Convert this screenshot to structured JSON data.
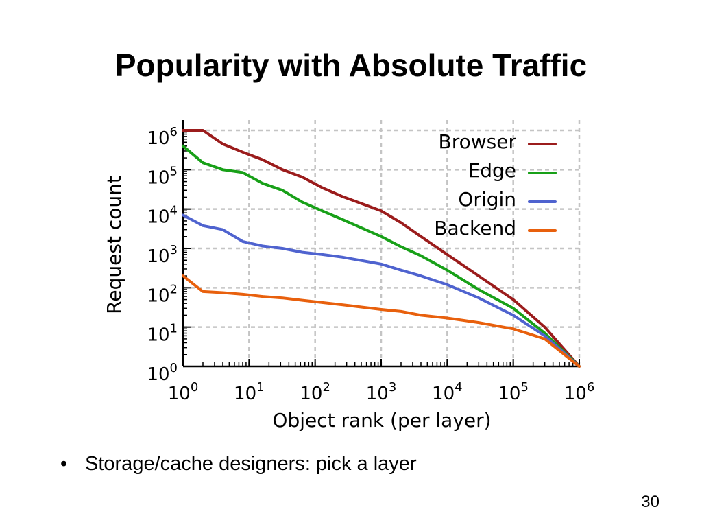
{
  "slide": {
    "title": "Popularity with Absolute Traffic",
    "bullet_marker": "•",
    "bullet": "Storage/cache designers: pick a layer",
    "page_number": "30"
  },
  "chart_data": {
    "type": "line",
    "xlabel": "Object rank (per layer)",
    "ylabel": "Request count",
    "xscale": "log",
    "yscale": "log",
    "xlim": [
      1,
      1000000
    ],
    "ylim": [
      1,
      1000000
    ],
    "x_ticks": [
      1,
      10,
      100,
      1000,
      10000,
      100000,
      1000000
    ],
    "y_ticks": [
      1,
      10,
      100,
      1000,
      10000,
      100000,
      1000000
    ],
    "grid": true,
    "legend": "top-right",
    "series": [
      {
        "name": "Browser",
        "color": "#9b1c1c",
        "x": [
          1,
          2,
          4,
          8,
          16,
          32,
          64,
          128,
          256,
          1000,
          2000,
          4000,
          10000,
          30000,
          100000,
          300000,
          1000000
        ],
        "y": [
          1000000,
          1000000,
          450000,
          280000,
          180000,
          100000,
          65000,
          35000,
          21000,
          9000,
          4500,
          2000,
          700,
          200,
          50,
          10,
          1
        ]
      },
      {
        "name": "Edge",
        "color": "#18a018",
        "x": [
          1,
          2,
          4,
          8,
          16,
          32,
          64,
          128,
          256,
          1000,
          2000,
          4000,
          10000,
          30000,
          100000,
          300000,
          1000000
        ],
        "y": [
          400000,
          150000,
          100000,
          85000,
          45000,
          30000,
          15000,
          9000,
          5500,
          2000,
          1100,
          650,
          280,
          90,
          30,
          7,
          1
        ]
      },
      {
        "name": "Origin",
        "color": "#4f63cf",
        "x": [
          1,
          2,
          4,
          8,
          16,
          32,
          64,
          128,
          256,
          1000,
          2000,
          4000,
          10000,
          30000,
          100000,
          300000,
          1000000
        ],
        "y": [
          7000,
          3800,
          3000,
          1500,
          1150,
          1000,
          800,
          700,
          600,
          400,
          280,
          200,
          120,
          55,
          20,
          6,
          1
        ]
      },
      {
        "name": "Backend",
        "color": "#e8600d",
        "x": [
          1,
          2,
          4,
          8,
          16,
          32,
          64,
          128,
          256,
          1000,
          2000,
          4000,
          10000,
          30000,
          100000,
          300000,
          1000000
        ],
        "y": [
          200,
          80,
          75,
          68,
          60,
          55,
          48,
          42,
          37,
          28,
          25,
          20,
          17,
          13,
          9,
          5,
          1
        ]
      }
    ]
  }
}
